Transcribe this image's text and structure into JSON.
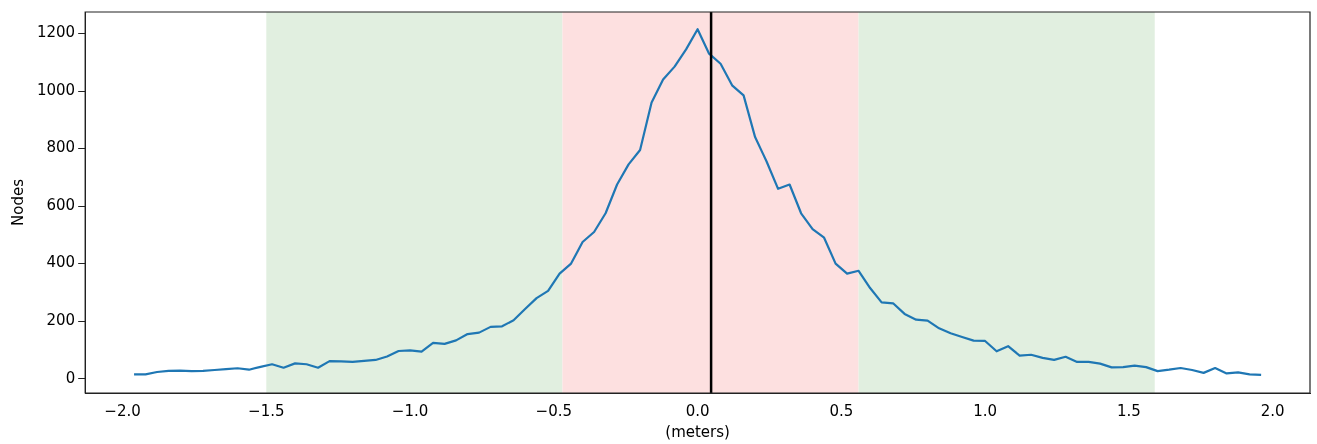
{
  "chart_data": {
    "type": "line",
    "xlabel": "(meters)",
    "ylabel": "Nodes",
    "x": [
      -1.96,
      -1.92,
      -1.88,
      -1.84,
      -1.8,
      -1.76,
      -1.72,
      -1.68,
      -1.64,
      -1.6,
      -1.56,
      -1.52,
      -1.48,
      -1.44,
      -1.4,
      -1.36,
      -1.32,
      -1.28,
      -1.24,
      -1.2,
      -1.16,
      -1.12,
      -1.08,
      -1.04,
      -1.0,
      -0.96,
      -0.92,
      -0.88,
      -0.84,
      -0.8,
      -0.76,
      -0.72,
      -0.68,
      -0.64,
      -0.6,
      -0.56,
      -0.52,
      -0.48,
      -0.44,
      -0.4,
      -0.36,
      -0.32,
      -0.28,
      -0.24,
      -0.2,
      -0.16,
      -0.12,
      -0.08,
      -0.04,
      0.0,
      0.04,
      0.08,
      0.12,
      0.16,
      0.2,
      0.24,
      0.28,
      0.32,
      0.36,
      0.4,
      0.44,
      0.48,
      0.52,
      0.56,
      0.6,
      0.64,
      0.68,
      0.72,
      0.76,
      0.8,
      0.84,
      0.88,
      0.92,
      0.96,
      1.0,
      1.04,
      1.08,
      1.12,
      1.16,
      1.2,
      1.24,
      1.28,
      1.32,
      1.36,
      1.4,
      1.44,
      1.48,
      1.52,
      1.56,
      1.6,
      1.64,
      1.68,
      1.72,
      1.76,
      1.8,
      1.84,
      1.88,
      1.92,
      1.96
    ],
    "series": [
      {
        "color": "#1f77b4",
        "values": [
          15,
          15,
          23,
          27,
          28,
          26,
          27,
          30,
          33,
          36,
          31,
          41,
          50,
          38,
          53,
          50,
          38,
          61,
          60,
          58,
          62,
          65,
          77,
          96,
          98,
          94,
          124,
          121,
          133,
          155,
          160,
          180,
          182,
          203,
          242,
          280,
          305,
          365,
          400,
          475,
          510,
          575,
          675,
          745,
          795,
          960,
          1040,
          1085,
          1145,
          1215,
          1130,
          1095,
          1020,
          985,
          840,
          755,
          660,
          675,
          575,
          520,
          490,
          400,
          365,
          375,
          315,
          265,
          262,
          225,
          205,
          202,
          175,
          158,
          145,
          132,
          131,
          95,
          113,
          80,
          83,
          72,
          65,
          76,
          58,
          58,
          52,
          39,
          40,
          45,
          40,
          26,
          31,
          37,
          30,
          20,
          37,
          18,
          22,
          15,
          13
        ]
      }
    ],
    "xlim": [
      -2.13,
      2.13
    ],
    "ylim": [
      -50,
      1275
    ],
    "xticks": [
      {
        "value": -2,
        "label": "−2.0"
      },
      {
        "value": -1.5,
        "label": "−1.5"
      },
      {
        "value": -1,
        "label": "−1.0"
      },
      {
        "value": -0.5,
        "label": "−0.5"
      },
      {
        "value": 0,
        "label": "0.0"
      },
      {
        "value": 0.5,
        "label": "0.5"
      },
      {
        "value": 1,
        "label": "1.0"
      },
      {
        "value": 1.5,
        "label": "1.5"
      },
      {
        "value": 2,
        "label": "2.0"
      }
    ],
    "yticks": [
      0,
      200,
      400,
      600,
      800,
      1000,
      1200
    ],
    "bands": [
      {
        "axis": "x",
        "from": -1.5,
        "to": -0.47,
        "color": "#e1efe0"
      },
      {
        "axis": "x",
        "from": -0.47,
        "to": 0.56,
        "color": "#fde0e0"
      },
      {
        "axis": "x",
        "from": 0.56,
        "to": 1.59,
        "color": "#e1efe0"
      }
    ],
    "ref_lines": [
      {
        "axis": "x",
        "value": 0.047,
        "color": "#000000",
        "line_style": "solid"
      }
    ],
    "grid": false,
    "legend": false,
    "marker": "none",
    "line_style": "solid"
  }
}
